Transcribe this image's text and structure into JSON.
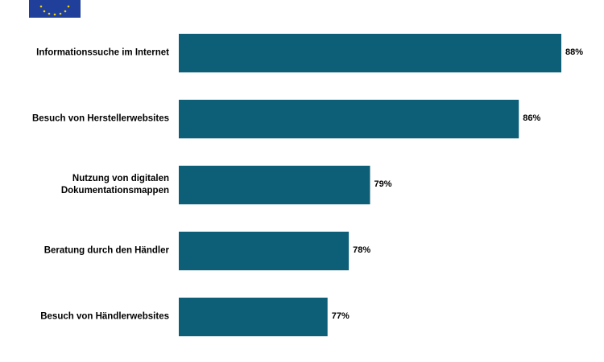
{
  "chart_data": {
    "type": "bar",
    "orientation": "horizontal",
    "categories": [
      "Informationssuche im Internet",
      "Besuch von Herstellerwebsites",
      "Nutzung von digitalen\nDokumentationsmappen",
      "Beratung durch den Händler",
      "Besuch von Händlerwebsites"
    ],
    "values": [
      88,
      86,
      79,
      78,
      77
    ],
    "value_labels": [
      "88%",
      "86%",
      "79%",
      "78%",
      "77%"
    ],
    "color": "#0d5f78",
    "xlim": [
      70,
      88
    ]
  }
}
